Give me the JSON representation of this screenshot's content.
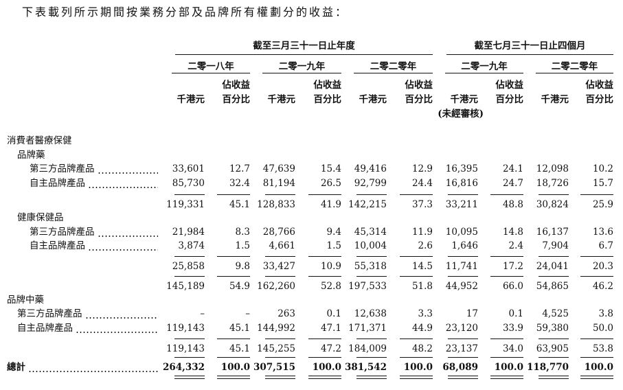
{
  "intro": "下表載列所示期間按業務分部及品牌所有權劃分的收益：",
  "header": {
    "groups": [
      "截至三月三十一日止年度",
      "截至七月三十一日止四個月"
    ],
    "years": [
      "二零一八年",
      "二零一九年",
      "二零二零年",
      "二零一九年",
      "二零二零年"
    ],
    "columns": [
      [
        "千港元"
      ],
      [
        "佔收益",
        "百分比"
      ],
      [
        "千港元"
      ],
      [
        "佔收益",
        "百分比"
      ],
      [
        "千港元"
      ],
      [
        "佔收益",
        "百分比"
      ],
      [
        "千港元",
        "(未經審核)"
      ],
      [
        "佔收益",
        "百分比"
      ],
      [
        "千港元"
      ],
      [
        "佔收益",
        "百分比"
      ]
    ]
  },
  "rows": [
    {
      "kind": "heading",
      "indent": 0,
      "label": "消費者醫療保健"
    },
    {
      "kind": "heading",
      "indent": 1,
      "label": "品牌藥"
    },
    {
      "kind": "item",
      "indent": 2,
      "label": "第三方品牌產品",
      "values": [
        "33,601",
        "12.7",
        "47,639",
        "15.4",
        "49,416",
        "12.9",
        "16,395",
        "24.1",
        "12,098",
        "10.2"
      ]
    },
    {
      "kind": "item",
      "indent": 2,
      "label": "自主品牌產品",
      "values": [
        "85,730",
        "32.4",
        "81,194",
        "26.5",
        "92,799",
        "24.4",
        "16,816",
        "24.7",
        "18,726",
        "15.7"
      ]
    },
    {
      "kind": "subtotal",
      "values": [
        "119,331",
        "45.1",
        "128,833",
        "41.9",
        "142,215",
        "37.3",
        "33,211",
        "48.8",
        "30,824",
        "25.9"
      ]
    },
    {
      "kind": "heading",
      "indent": 1,
      "label": "健康保健品"
    },
    {
      "kind": "item",
      "indent": 2,
      "label": "第三方品牌產品",
      "values": [
        "21,984",
        "8.3",
        "28,766",
        "9.4",
        "45,314",
        "11.9",
        "10,095",
        "14.8",
        "16,137",
        "13.6"
      ]
    },
    {
      "kind": "item",
      "indent": 2,
      "label": "自主品牌產品",
      "values": [
        "3,874",
        "1.5",
        "4,661",
        "1.5",
        "10,004",
        "2.6",
        "1,646",
        "2.4",
        "7,904",
        "6.7"
      ]
    },
    {
      "kind": "subtotal",
      "values": [
        "25,858",
        "9.8",
        "33,427",
        "10.9",
        "55,318",
        "14.5",
        "11,741",
        "17.2",
        "24,041",
        "20.3"
      ]
    },
    {
      "kind": "subtotal",
      "values": [
        "145,189",
        "54.9",
        "162,260",
        "52.8",
        "197,533",
        "51.8",
        "44,952",
        "66.0",
        "54,865",
        "46.2"
      ]
    },
    {
      "kind": "heading",
      "indent": 0,
      "label": "品牌中藥"
    },
    {
      "kind": "item",
      "indent": 1,
      "label": "第三方品牌產品",
      "values": [
        "–",
        "–",
        "263",
        "0.1",
        "12,638",
        "3.3",
        "17",
        "0.1",
        "4,525",
        "3.8"
      ]
    },
    {
      "kind": "item",
      "indent": 1,
      "label": "自主品牌產品",
      "values": [
        "119,143",
        "45.1",
        "144,992",
        "47.1",
        "171,371",
        "44.9",
        "23,120",
        "33.9",
        "59,380",
        "50.0"
      ]
    },
    {
      "kind": "subtotal",
      "values": [
        "119,143",
        "45.1",
        "145,255",
        "47.2",
        "184,009",
        "48.2",
        "23,137",
        "34.0",
        "63,905",
        "53.8"
      ]
    },
    {
      "kind": "total",
      "indent": 0,
      "label": "總計",
      "values": [
        "264,332",
        "100.0",
        "307,515",
        "100.0",
        "381,542",
        "100.0",
        "68,089",
        "100.0",
        "118,770",
        "100.0"
      ]
    }
  ]
}
